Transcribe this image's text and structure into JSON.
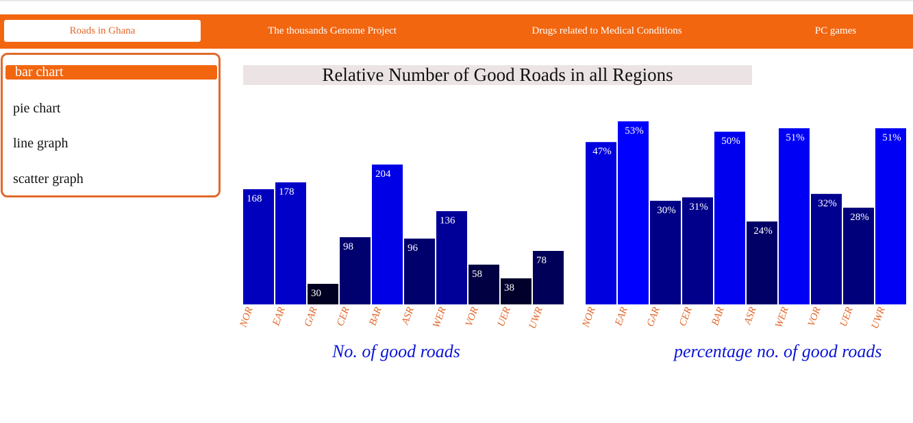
{
  "nav": {
    "items": [
      "Roads in Ghana",
      "The thousands Genome Project",
      "Drugs related to Medical Conditions",
      "PC games"
    ]
  },
  "sidebar": {
    "items": [
      "bar chart",
      "pie chart",
      "line graph",
      "scatter graph"
    ]
  },
  "chart_title": "Relative Number of Good Roads in all Regions",
  "chart_data": [
    {
      "type": "bar",
      "categories": [
        "NOR",
        "EAR",
        "GAR",
        "CER",
        "BAR",
        "ASR",
        "WER",
        "VOR",
        "UER",
        "UWR"
      ],
      "values": [
        168,
        178,
        30,
        98,
        204,
        96,
        136,
        58,
        38,
        78
      ],
      "data_labels": [
        "168",
        "178",
        "30",
        "98",
        "204",
        "96",
        "136",
        "58",
        "38",
        "78"
      ],
      "xlabel": "No. of good roads",
      "ylim": [
        0,
        270
      ],
      "grid": false,
      "color_scale": [
        "#000022",
        "#0000e6"
      ]
    },
    {
      "type": "bar",
      "categories": [
        "NOR",
        "EAR",
        "GAR",
        "CER",
        "BAR",
        "ASR",
        "WER",
        "VOR",
        "UER",
        "UWR"
      ],
      "values": [
        47,
        53,
        30,
        31,
        50,
        24,
        51,
        32,
        28,
        51
      ],
      "data_labels": [
        "47%",
        "53%",
        "30%",
        "31%",
        "50%",
        "24%",
        "51%",
        "32%",
        "28%",
        "51%"
      ],
      "xlabel": "percentage no. of good roads",
      "ylim": [
        0,
        66
      ],
      "grid": false,
      "color_scale": [
        "#000066",
        "#0000ff"
      ]
    }
  ],
  "colors": {
    "accent": "#f26610",
    "tick_label": "#e2672a",
    "caption": "#0a14d6",
    "title_bg": "#ece4e4"
  }
}
